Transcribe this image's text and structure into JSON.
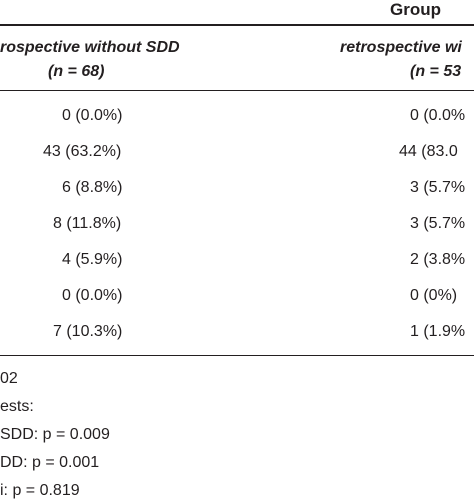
{
  "table": {
    "group_header": "Group",
    "col1_header": {
      "line1": "rospective without SDD",
      "line2": "(n = 68)"
    },
    "col2_header": {
      "line1": "retrospective wi",
      "line2": "(n = 53"
    },
    "rows": [
      {
        "col1": "0 (0.0%)",
        "col2": "0 (0.0%"
      },
      {
        "col1": "43 (63.2%)",
        "col2": "44 (83.0"
      },
      {
        "col1": "6 (8.8%)",
        "col2": "3 (5.7%"
      },
      {
        "col1": "8 (11.8%)",
        "col2": "3 (5.7%"
      },
      {
        "col1": "4 (5.9%)",
        "col2": "2 (3.8%"
      },
      {
        "col1": "0 (0.0%)",
        "col2": "0 (0%)"
      },
      {
        "col1": "7 (10.3%)",
        "col2": "1 (1.9%"
      }
    ]
  },
  "footnotes": [
    "02",
    "ests:",
    "SDD: p = 0.009",
    "DD: p = 0.001",
    "i: p = 0.819"
  ]
}
